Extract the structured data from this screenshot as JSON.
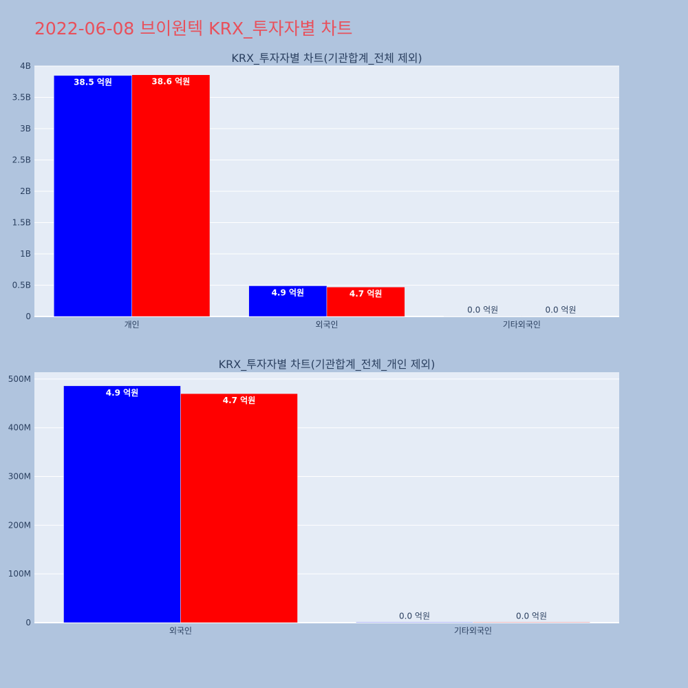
{
  "page": {
    "title": "2022-06-08 브이원텍 KRX_투자자별 차트"
  },
  "chart_data": [
    {
      "type": "bar",
      "title": "KRX_투자자별 차트(기관합계_전체 제외)",
      "categories": [
        "개인",
        "외국인",
        "기타외국인"
      ],
      "series": [
        {
          "color": "#0000ff",
          "values": [
            3850000000,
            490000000,
            1000000
          ],
          "labels": [
            "38.5 억원",
            "4.9 억원",
            "0.0 억원"
          ]
        },
        {
          "color": "#ff0000",
          "values": [
            3860000000,
            470000000,
            1000000
          ],
          "labels": [
            "38.6 억원",
            "4.7 억원",
            "0.0 억원"
          ]
        }
      ],
      "ylim": [
        0,
        4000000000
      ],
      "yticks": [
        0,
        500000000,
        1000000000,
        1500000000,
        2000000000,
        2500000000,
        3000000000,
        3500000000,
        4000000000
      ],
      "ytick_labels": [
        "0",
        "0.5B",
        "1B",
        "1.5B",
        "2B",
        "2.5B",
        "3B",
        "3.5B",
        "4B"
      ],
      "grid": true
    },
    {
      "type": "bar",
      "title": "KRX_투자자별 차트(기관합계_전체_개인 제외)",
      "categories": [
        "외국인",
        "기타외국인"
      ],
      "series": [
        {
          "color": "#0000ff",
          "values": [
            486000000,
            1000000
          ],
          "labels": [
            "4.9 억원",
            "0.0 억원"
          ]
        },
        {
          "color": "#ff0000",
          "values": [
            470000000,
            1000000
          ],
          "labels": [
            "4.7 억원",
            "0.0 억원"
          ]
        }
      ],
      "ylim": [
        0,
        514000000
      ],
      "yticks": [
        0,
        100000000,
        200000000,
        300000000,
        400000000,
        500000000
      ],
      "ytick_labels": [
        "0",
        "100M",
        "200M",
        "300M",
        "400M",
        "500M"
      ],
      "grid": true
    }
  ]
}
